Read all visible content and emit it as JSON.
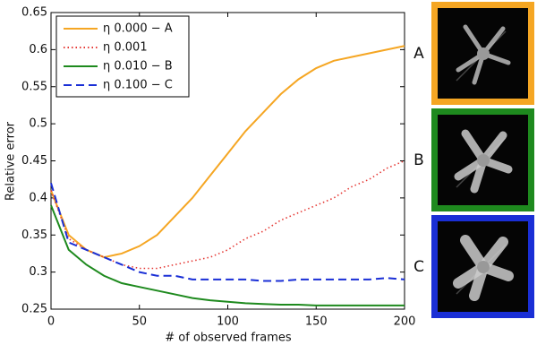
{
  "chart_data": {
    "type": "line",
    "x_label": "# of observed frames",
    "y_label": "Relative error",
    "x": [
      0,
      10,
      20,
      30,
      40,
      50,
      60,
      70,
      80,
      90,
      100,
      110,
      120,
      130,
      140,
      150,
      160,
      170,
      180,
      190,
      200
    ],
    "series": [
      {
        "name": "η 0.000 − A",
        "color": "#f5a623",
        "dash": "solid",
        "values": [
          0.41,
          0.35,
          0.33,
          0.32,
          0.325,
          0.335,
          0.35,
          0.375,
          0.4,
          0.43,
          0.46,
          0.49,
          0.515,
          0.54,
          0.56,
          0.575,
          0.585,
          0.59,
          0.595,
          0.6,
          0.605
        ]
      },
      {
        "name": "η 0.001",
        "color": "#e53935",
        "dash": "dotted",
        "values": [
          0.41,
          0.345,
          0.33,
          0.32,
          0.31,
          0.305,
          0.305,
          0.31,
          0.315,
          0.32,
          0.33,
          0.345,
          0.355,
          0.37,
          0.38,
          0.39,
          0.4,
          0.415,
          0.425,
          0.44,
          0.45
        ]
      },
      {
        "name": "η 0.010 − B",
        "color": "#1e8a1e",
        "dash": "solid",
        "values": [
          0.39,
          0.33,
          0.31,
          0.295,
          0.285,
          0.28,
          0.275,
          0.27,
          0.265,
          0.262,
          0.26,
          0.258,
          0.257,
          0.256,
          0.256,
          0.255,
          0.255,
          0.255,
          0.255,
          0.255,
          0.255
        ]
      },
      {
        "name": "η 0.100 − C",
        "color": "#1a2fd6",
        "dash": "dashed",
        "values": [
          0.42,
          0.34,
          0.33,
          0.32,
          0.31,
          0.3,
          0.295,
          0.295,
          0.29,
          0.29,
          0.29,
          0.29,
          0.288,
          0.288,
          0.29,
          0.29,
          0.29,
          0.29,
          0.29,
          0.292,
          0.29
        ]
      }
    ],
    "xlim": [
      0,
      200
    ],
    "xticks": [
      0,
      50,
      100,
      150,
      200
    ],
    "ylim": [
      0.25,
      0.65
    ],
    "yticks": [
      0.25,
      0.3,
      0.35,
      0.4,
      0.45,
      0.5,
      0.55,
      0.6,
      0.65
    ],
    "legend": "upper left",
    "grid": false
  },
  "panels": [
    {
      "label": "A",
      "color": "#f5a623"
    },
    {
      "label": "B",
      "color": "#1e8a1e"
    },
    {
      "label": "C",
      "color": "#1a2fd6"
    }
  ]
}
